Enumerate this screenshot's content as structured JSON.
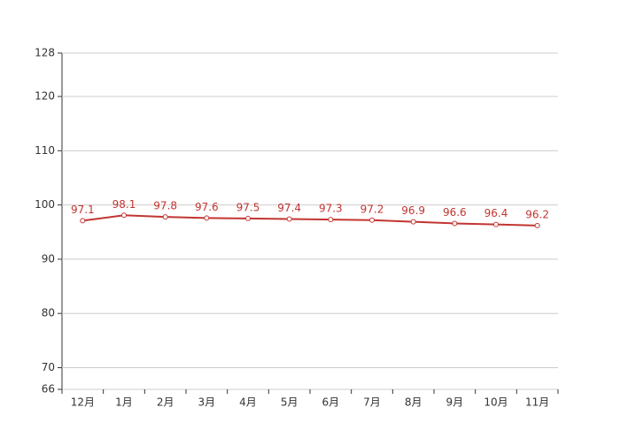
{
  "chart_data": {
    "type": "line",
    "categories": [
      "12月",
      "1月",
      "2月",
      "3月",
      "4月",
      "5月",
      "6月",
      "7月",
      "8月",
      "9月",
      "10月",
      "11月"
    ],
    "values": [
      97.1,
      98.1,
      97.8,
      97.6,
      97.5,
      97.4,
      97.3,
      97.2,
      96.9,
      96.6,
      96.4,
      96.2
    ],
    "color": "#c23531",
    "ylim": [
      66,
      128
    ],
    "yticks": [
      66,
      70,
      80,
      90,
      100,
      110,
      120,
      128
    ],
    "grid": true
  }
}
